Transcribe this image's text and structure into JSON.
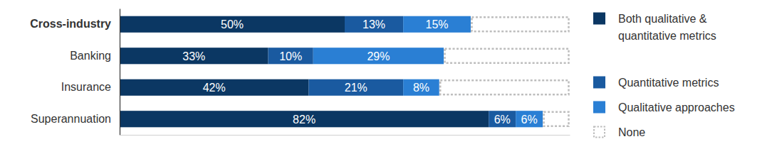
{
  "chart_data": {
    "type": "bar",
    "orientation": "horizontal",
    "stacked": true,
    "categories": [
      "Cross-industry",
      "Banking",
      "Insurance",
      "Superannuation"
    ],
    "xlim": [
      0,
      100
    ],
    "tick_labels": "y",
    "legend": "right",
    "series": [
      {
        "name": "Both qualitative & quantitative metrics",
        "color": "#0b3763",
        "values": [
          50,
          33,
          42,
          82
        ],
        "value_labels": [
          "50%",
          "33%",
          "42%",
          "82%"
        ],
        "data_labels": true
      },
      {
        "name": "Quantitative metrics",
        "color": "#1a5aa0",
        "values": [
          13,
          10,
          21,
          6
        ],
        "value_labels": [
          "13%",
          "10%",
          "21%",
          "6%"
        ],
        "data_labels": true
      },
      {
        "name": "Qualitative approaches",
        "color": "#2a7fd4",
        "values": [
          15,
          29,
          8,
          6
        ],
        "value_labels": [
          "15%",
          "29%",
          "8%",
          "6%"
        ],
        "data_labels": true
      },
      {
        "name": "None",
        "color": "#bdbdbd",
        "line_style": "dotted",
        "values": [
          22,
          28,
          29,
          6
        ],
        "data_labels": false
      }
    ]
  }
}
